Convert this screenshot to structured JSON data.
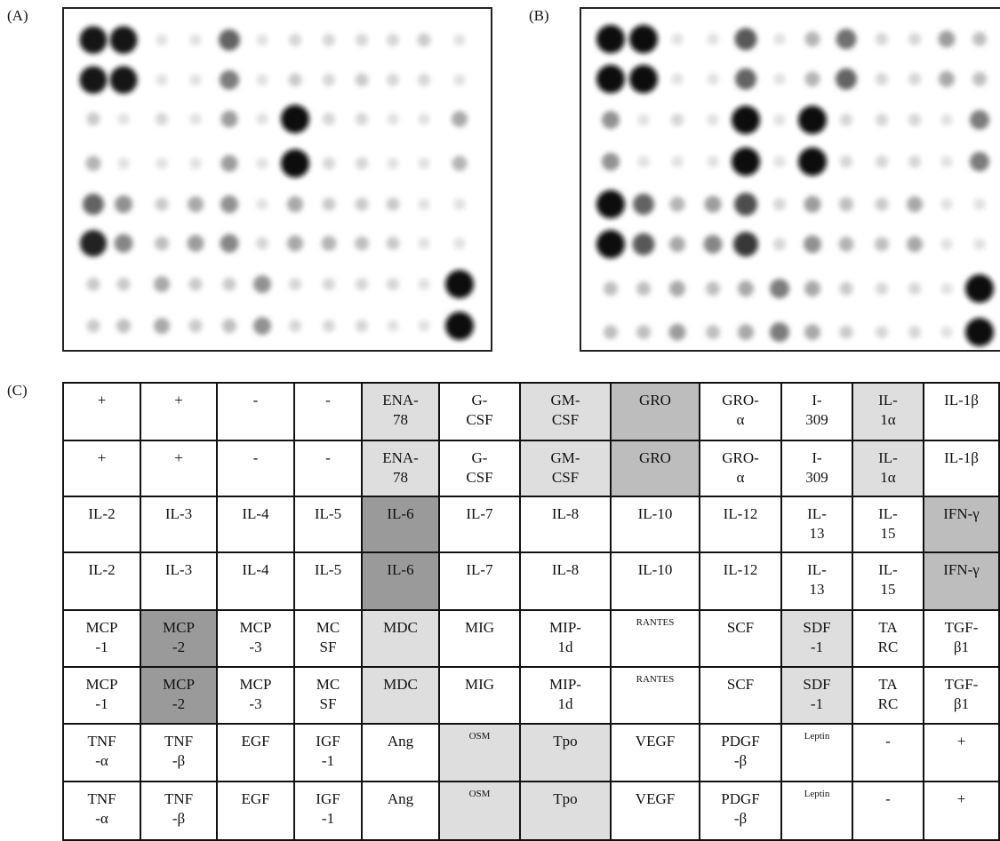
{
  "panels": [
    "(A)",
    "(B)",
    "(C)"
  ],
  "table": {
    "rows": [
      [
        {
          "text": "+",
          "fill": "#ffffff"
        },
        {
          "text": "+",
          "fill": "#ffffff"
        },
        {
          "text": "-",
          "fill": "#ffffff"
        },
        {
          "text": "-",
          "fill": "#ffffff"
        },
        {
          "text": "ENA-\n78",
          "fill": "#dedede"
        },
        {
          "text": "G-\nCSF",
          "fill": "#ffffff"
        },
        {
          "text": "GM-\nCSF",
          "fill": "#dedede"
        },
        {
          "text": "GRO",
          "fill": "#bdbdbd"
        },
        {
          "text": "GRO-\nα",
          "fill": "#ffffff"
        },
        {
          "text": "I-\n309",
          "fill": "#ffffff"
        },
        {
          "text": "IL-\n1α",
          "fill": "#dedede"
        },
        {
          "text": "IL-1β",
          "fill": "#ffffff"
        }
      ],
      [
        {
          "text": "+",
          "fill": "#ffffff"
        },
        {
          "text": "+",
          "fill": "#ffffff"
        },
        {
          "text": "-",
          "fill": "#ffffff"
        },
        {
          "text": "-",
          "fill": "#ffffff"
        },
        {
          "text": "ENA-\n78",
          "fill": "#dedede"
        },
        {
          "text": "G-\nCSF",
          "fill": "#ffffff"
        },
        {
          "text": "GM-\nCSF",
          "fill": "#dedede"
        },
        {
          "text": "GRO",
          "fill": "#bdbdbd"
        },
        {
          "text": "GRO-\nα",
          "fill": "#ffffff"
        },
        {
          "text": "I-\n309",
          "fill": "#ffffff"
        },
        {
          "text": "IL-\n1α",
          "fill": "#dedede"
        },
        {
          "text": "IL-1β",
          "fill": "#ffffff"
        }
      ],
      [
        {
          "text": "IL-2",
          "fill": "#ffffff"
        },
        {
          "text": "IL-3",
          "fill": "#ffffff"
        },
        {
          "text": "IL-4",
          "fill": "#ffffff"
        },
        {
          "text": "IL-5",
          "fill": "#ffffff"
        },
        {
          "text": "IL-6",
          "fill": "#9a9a9a"
        },
        {
          "text": "IL-7",
          "fill": "#ffffff"
        },
        {
          "text": "IL-8",
          "fill": "#ffffff"
        },
        {
          "text": "IL-10",
          "fill": "#ffffff"
        },
        {
          "text": "IL-12",
          "fill": "#ffffff"
        },
        {
          "text": "IL-\n13",
          "fill": "#ffffff"
        },
        {
          "text": "IL-\n15",
          "fill": "#ffffff"
        },
        {
          "text": "IFN-γ",
          "fill": "#bdbdbd"
        }
      ],
      [
        {
          "text": "IL-2",
          "fill": "#ffffff"
        },
        {
          "text": "IL-3",
          "fill": "#ffffff"
        },
        {
          "text": "IL-4",
          "fill": "#ffffff"
        },
        {
          "text": "IL-5",
          "fill": "#ffffff"
        },
        {
          "text": "IL-6",
          "fill": "#9a9a9a"
        },
        {
          "text": "IL-7",
          "fill": "#ffffff"
        },
        {
          "text": "IL-8",
          "fill": "#ffffff"
        },
        {
          "text": "IL-10",
          "fill": "#ffffff"
        },
        {
          "text": "IL-12",
          "fill": "#ffffff"
        },
        {
          "text": "IL-\n13",
          "fill": "#ffffff"
        },
        {
          "text": "IL-\n15",
          "fill": "#ffffff"
        },
        {
          "text": "IFN-γ",
          "fill": "#bdbdbd"
        }
      ],
      [
        {
          "text": "MCP\n-1",
          "fill": "#ffffff"
        },
        {
          "text": "MCP\n-2",
          "fill": "#9a9a9a"
        },
        {
          "text": "MCP\n-3",
          "fill": "#ffffff"
        },
        {
          "text": "MC\nSF",
          "fill": "#ffffff"
        },
        {
          "text": "MDC",
          "fill": "#dedede"
        },
        {
          "text": "MIG",
          "fill": "#ffffff"
        },
        {
          "text": "MIP-\n1d",
          "fill": "#ffffff"
        },
        {
          "text": "RANTES",
          "fill": "#ffffff"
        },
        {
          "text": "SCF",
          "fill": "#ffffff"
        },
        {
          "text": "SDF\n-1",
          "fill": "#dedede"
        },
        {
          "text": "TA\nRC",
          "fill": "#ffffff"
        },
        {
          "text": "TGF-\nβ1",
          "fill": "#ffffff"
        }
      ],
      [
        {
          "text": "MCP\n-1",
          "fill": "#ffffff"
        },
        {
          "text": "MCP\n-2",
          "fill": "#9a9a9a"
        },
        {
          "text": "MCP\n-3",
          "fill": "#ffffff"
        },
        {
          "text": "MC\nSF",
          "fill": "#ffffff"
        },
        {
          "text": "MDC",
          "fill": "#dedede"
        },
        {
          "text": "MIG",
          "fill": "#ffffff"
        },
        {
          "text": "MIP-\n1d",
          "fill": "#ffffff"
        },
        {
          "text": "RANTES",
          "fill": "#ffffff"
        },
        {
          "text": "SCF",
          "fill": "#ffffff"
        },
        {
          "text": "SDF\n-1",
          "fill": "#dedede"
        },
        {
          "text": "TA\nRC",
          "fill": "#ffffff"
        },
        {
          "text": "TGF-\nβ1",
          "fill": "#ffffff"
        }
      ],
      [
        {
          "text": "TNF\n-α",
          "fill": "#ffffff"
        },
        {
          "text": "TNF\n-β",
          "fill": "#ffffff"
        },
        {
          "text": "EGF",
          "fill": "#ffffff"
        },
        {
          "text": "IGF\n-1",
          "fill": "#ffffff"
        },
        {
          "text": "Ang",
          "fill": "#ffffff"
        },
        {
          "text": "OSM",
          "fill": "#dedede"
        },
        {
          "text": "Tpo",
          "fill": "#dedede"
        },
        {
          "text": "VEGF",
          "fill": "#ffffff"
        },
        {
          "text": "PDGF\n-β",
          "fill": "#ffffff"
        },
        {
          "text": "Leptin",
          "fill": "#ffffff"
        },
        {
          "text": "-",
          "fill": "#ffffff"
        },
        {
          "text": "+",
          "fill": "#ffffff"
        }
      ],
      [
        {
          "text": "TNF\n-α",
          "fill": "#ffffff"
        },
        {
          "text": "TNF\n-β",
          "fill": "#ffffff"
        },
        {
          "text": "EGF",
          "fill": "#ffffff"
        },
        {
          "text": "IGF\n-1",
          "fill": "#ffffff"
        },
        {
          "text": "Ang",
          "fill": "#ffffff"
        },
        {
          "text": "OSM",
          "fill": "#dedede"
        },
        {
          "text": "Tpo",
          "fill": "#dedede"
        },
        {
          "text": "VEGF",
          "fill": "#ffffff"
        },
        {
          "text": "PDGF\n-β",
          "fill": "#ffffff"
        },
        {
          "text": "Leptin",
          "fill": "#ffffff"
        },
        {
          "text": "-",
          "fill": "#ffffff"
        },
        {
          "text": "+",
          "fill": "#ffffff"
        }
      ]
    ]
  }
}
